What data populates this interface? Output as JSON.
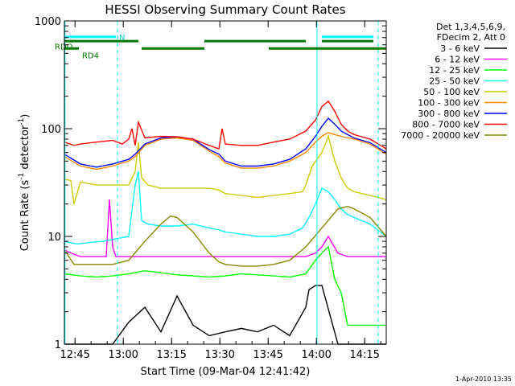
{
  "chart_data": {
    "type": "line",
    "title": "HESSI Observing Summary Count Rates",
    "xlabel": "Start Time (09-Mar-04 12:41:42)",
    "ylabel_main": "Count Rate (s",
    "ylabel_sup1": "-1",
    "ylabel_mid": " detector",
    "ylabel_sup2": "-1",
    "ylabel_end": ")",
    "y_scale": "log",
    "ylim": [
      1,
      1000
    ],
    "x_unit": "minutes since 12:41:42",
    "xlim": [
      0,
      100
    ],
    "x_ticks": [
      {
        "label": "12:45",
        "x": 3.3
      },
      {
        "label": "13:00",
        "x": 18.3
      },
      {
        "label": "13:15",
        "x": 33.3
      },
      {
        "label": "13:30",
        "x": 48.3
      },
      {
        "label": "13:45",
        "x": 63.3
      },
      {
        "label": "14:00",
        "x": 78.3
      },
      {
        "label": "14:15",
        "x": 93.3
      }
    ],
    "y_ticks": [
      {
        "label": "1",
        "y": 1
      },
      {
        "label": "10",
        "y": 10
      },
      {
        "label": "100",
        "y": 100
      },
      {
        "label": "1000",
        "y": 1000
      }
    ],
    "legend_header": [
      "Det 1,3,4,5,6,9,",
      "FDecim 2, Att 0"
    ],
    "legend_placement": "right",
    "series": [
      {
        "name": "3 - 6 keV",
        "color": "#000000",
        "x": [
          0,
          5,
          10,
          13,
          14,
          15,
          20,
          25,
          30,
          35,
          40,
          45,
          50,
          55,
          60,
          65,
          70,
          75,
          76,
          78,
          80,
          85,
          90,
          95,
          100
        ],
        "y": [
          1,
          1,
          1,
          1,
          1,
          1,
          1.6,
          2.2,
          1.3,
          2.8,
          1.5,
          1.2,
          1.3,
          1.4,
          1.3,
          1.5,
          1.2,
          2.2,
          3.2,
          3.5,
          3.5,
          1,
          1,
          1,
          1
        ]
      },
      {
        "name": "6 - 12 keV",
        "color": "#ff00ff",
        "x": [
          0,
          3,
          5,
          10,
          13,
          14,
          15,
          16,
          18,
          20,
          25,
          30,
          35,
          40,
          45,
          50,
          55,
          60,
          65,
          70,
          75,
          78,
          80,
          82,
          85,
          88,
          90,
          95,
          100
        ],
        "y": [
          7.5,
          6.8,
          6.5,
          6.5,
          6.5,
          22,
          8,
          6.5,
          6.5,
          6.5,
          6.5,
          6.5,
          6.5,
          6.5,
          6.5,
          6.5,
          6.5,
          6.5,
          6.5,
          6.5,
          6.5,
          7,
          8,
          10,
          7,
          6.5,
          6.5,
          6.5,
          6.5
        ]
      },
      {
        "name": "12 - 25 keV",
        "color": "#00ff00",
        "x": [
          0,
          5,
          10,
          15,
          20,
          25,
          30,
          35,
          40,
          45,
          50,
          55,
          60,
          65,
          70,
          75,
          78,
          80,
          82,
          84,
          86,
          88,
          90,
          95,
          100
        ],
        "y": [
          4.5,
          4.3,
          4.2,
          4.3,
          4.5,
          4.8,
          4.6,
          4.4,
          4.3,
          4.2,
          4.3,
          4.5,
          4.4,
          4.3,
          4.2,
          4.5,
          6,
          7,
          8,
          4,
          3,
          1.5,
          1.5,
          1.5,
          1.5
        ]
      },
      {
        "name": "25 - 50 keV",
        "color": "#00ffff",
        "x": [
          0,
          4,
          8,
          12,
          16,
          20,
          22,
          23,
          24,
          26,
          30,
          35,
          40,
          45,
          48,
          50,
          55,
          60,
          65,
          70,
          74,
          76,
          78,
          80,
          82,
          84,
          86,
          88,
          90,
          95,
          100
        ],
        "y": [
          9,
          8.5,
          8.8,
          9,
          9.5,
          10,
          30,
          40,
          14,
          13,
          12.5,
          12.5,
          13,
          12,
          11.5,
          11,
          10.5,
          10,
          10,
          10.5,
          12,
          15,
          20,
          28,
          26,
          22,
          18,
          16,
          15,
          13,
          10
        ]
      },
      {
        "name": "50 - 100 keV",
        "color": "#cccc00",
        "x": [
          0,
          2,
          3,
          5,
          10,
          15,
          20,
          22,
          23,
          24,
          26,
          30,
          35,
          40,
          45,
          48,
          50,
          55,
          60,
          65,
          70,
          74,
          75,
          77,
          80,
          82,
          84,
          86,
          88,
          90,
          95,
          100
        ],
        "y": [
          34,
          33,
          20,
          32,
          30,
          30,
          30,
          40,
          75,
          35,
          30,
          28,
          28,
          28,
          28,
          27,
          25,
          24,
          23,
          24,
          25,
          26,
          30,
          45,
          60,
          85,
          50,
          35,
          28,
          26,
          24,
          22
        ]
      },
      {
        "name": "100 - 300 keV",
        "color": "#ff8800",
        "x": [
          0,
          5,
          10,
          15,
          20,
          22,
          25,
          30,
          35,
          40,
          45,
          48,
          50,
          55,
          60,
          65,
          70,
          75,
          78,
          80,
          82,
          84,
          86,
          88,
          90,
          95,
          100
        ],
        "y": [
          55,
          45,
          42,
          45,
          50,
          55,
          70,
          80,
          82,
          78,
          62,
          55,
          48,
          43,
          43,
          45,
          50,
          60,
          75,
          85,
          92,
          88,
          85,
          82,
          80,
          72,
          58
        ]
      },
      {
        "name": "300 - 800 keV",
        "color": "#0000ff",
        "x": [
          0,
          5,
          10,
          15,
          20,
          22,
          25,
          30,
          35,
          40,
          45,
          48,
          50,
          55,
          60,
          65,
          70,
          75,
          78,
          80,
          82,
          84,
          86,
          88,
          90,
          95,
          100
        ],
        "y": [
          58,
          47,
          44,
          47,
          52,
          58,
          72,
          82,
          84,
          80,
          64,
          58,
          50,
          45,
          45,
          47,
          52,
          65,
          85,
          105,
          125,
          110,
          95,
          88,
          82,
          74,
          60
        ]
      },
      {
        "name": "800 - 7000 keV",
        "color": "#ff0000",
        "x": [
          0,
          3,
          5,
          10,
          15,
          18,
          20,
          21,
          22,
          23,
          25,
          30,
          35,
          40,
          45,
          48,
          49,
          50,
          55,
          60,
          65,
          70,
          75,
          78,
          80,
          82,
          84,
          86,
          88,
          90,
          95,
          100
        ],
        "y": [
          75,
          70,
          72,
          75,
          78,
          72,
          80,
          100,
          70,
          115,
          82,
          85,
          84,
          80,
          70,
          65,
          100,
          72,
          70,
          70,
          75,
          80,
          95,
          120,
          160,
          180,
          145,
          110,
          95,
          88,
          80,
          65
        ]
      },
      {
        "name": "7000 - 20000 keV",
        "color": "#888800",
        "x": [
          0,
          3,
          5,
          10,
          15,
          20,
          25,
          30,
          33,
          35,
          40,
          45,
          48,
          50,
          55,
          60,
          65,
          70,
          75,
          80,
          85,
          88,
          90,
          95,
          100
        ],
        "y": [
          7.5,
          5.5,
          5.5,
          5.5,
          5.5,
          6,
          9,
          13,
          15.5,
          15,
          11,
          7,
          5.8,
          5.5,
          5.3,
          5.3,
          5.5,
          6,
          8,
          12,
          18,
          19,
          18,
          15,
          10
        ]
      }
    ],
    "annotations": {
      "rdo": {
        "label": "RDO",
        "x_start": 0,
        "x_end": 17,
        "y": 580
      },
      "rd4": {
        "label": "RD4",
        "segments": [
          [
            0,
            4.5
          ],
          [
            24,
            43.5
          ],
          [
            63.5,
            100
          ]
        ],
        "y": 555
      },
      "n_label": "N",
      "n_bar": {
        "segments": [
          [
            0,
            16
          ],
          [
            80,
            96
          ]
        ],
        "y": 710
      },
      "cyan_top_segments": [
        [
          50,
          68
        ]
      ],
      "green_top_segments": [
        [
          0,
          23
        ],
        [
          43.5,
          75
        ],
        [
          80,
          96
        ]
      ],
      "dashed_lines_x": [
        16.5,
        97.5
      ],
      "solid_lines_x": [
        0.2,
        78.5
      ]
    },
    "footer_stamp": "1-Apr-2010 13:35"
  }
}
